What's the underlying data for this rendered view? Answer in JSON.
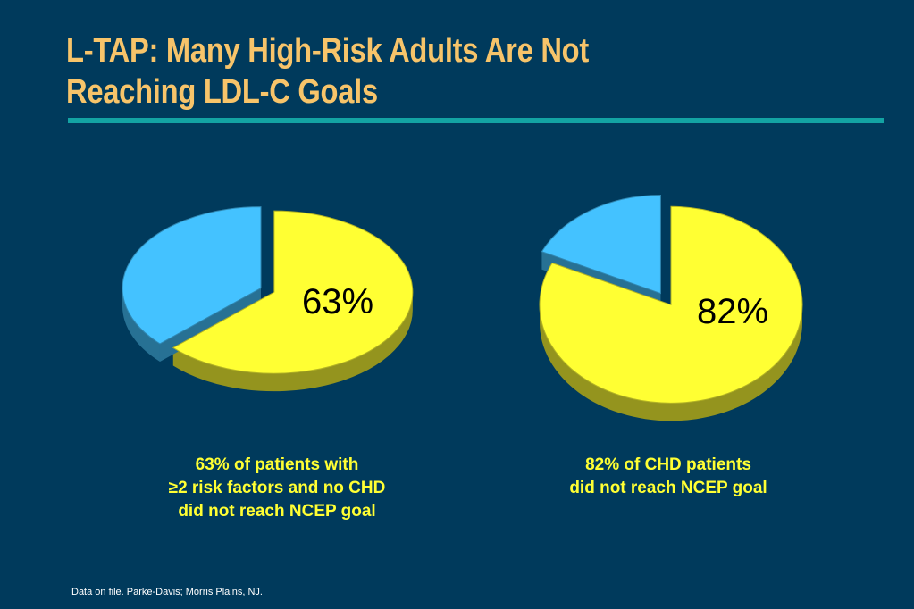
{
  "title_lines": [
    "L-TAP: Many High-Risk Adults Are Not",
    "Reaching LDL-C Goals"
  ],
  "chart_data": [
    {
      "type": "pie",
      "slices": [
        {
          "label": "63%",
          "value": 63,
          "color": "#ffff33"
        },
        {
          "label": "",
          "value": 37,
          "color": "#44c2ff"
        }
      ],
      "caption_lines": [
        "63% of patients with",
        "≥2 risk factors and no CHD",
        "did not reach NCEP goal"
      ]
    },
    {
      "type": "pie",
      "slices": [
        {
          "label": "82%",
          "value": 82,
          "color": "#ffff33"
        },
        {
          "label": "",
          "value": 18,
          "color": "#44c2ff"
        }
      ],
      "caption_lines": [
        "82% of CHD patients",
        "did not reach NCEP goal"
      ]
    }
  ],
  "footnote": "Data on file.  Parke-Davis; Morris Plains, NJ."
}
